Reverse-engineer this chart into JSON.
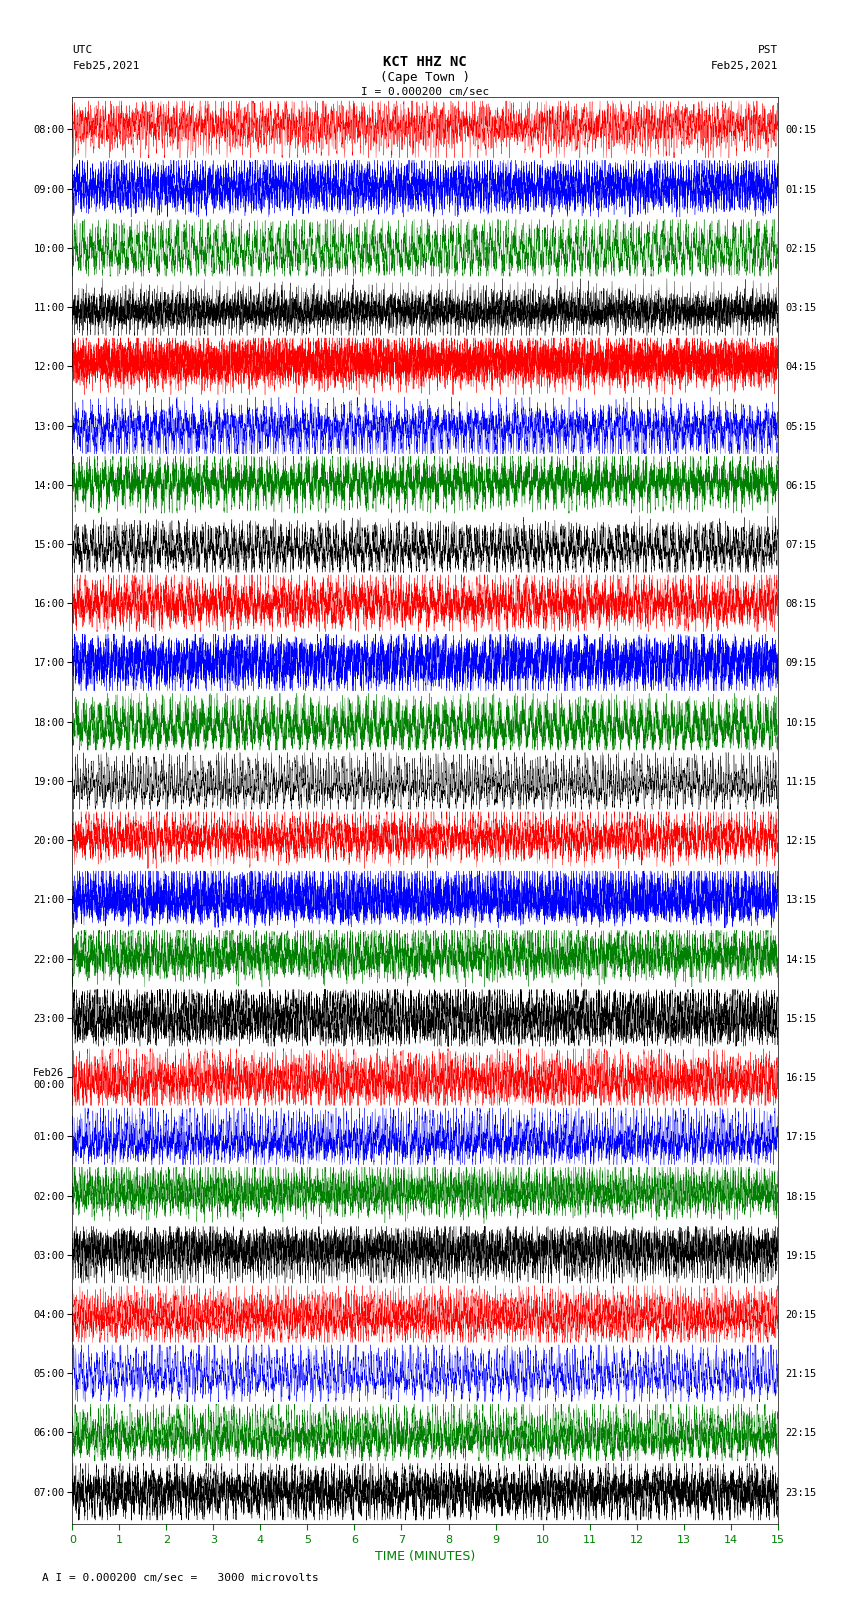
{
  "title_line1": "KCT HHZ NC",
  "title_line2": "(Cape Town )",
  "scale_label": "I = 0.000200 cm/sec",
  "footer_label": "A I = 0.000200 cm/sec =   3000 microvolts",
  "utc_label": "UTC",
  "pst_label": "PST",
  "date_left": "Feb25,2021",
  "date_right": "Feb25,2021",
  "xlabel": "TIME (MINUTES)",
  "left_times": [
    "08:00",
    "09:00",
    "10:00",
    "11:00",
    "12:00",
    "13:00",
    "14:00",
    "15:00",
    "16:00",
    "17:00",
    "18:00",
    "19:00",
    "20:00",
    "21:00",
    "22:00",
    "23:00",
    "Feb26\n00:00",
    "01:00",
    "02:00",
    "03:00",
    "04:00",
    "05:00",
    "06:00",
    "07:00"
  ],
  "right_times": [
    "00:15",
    "01:15",
    "02:15",
    "03:15",
    "04:15",
    "05:15",
    "06:15",
    "07:15",
    "08:15",
    "09:15",
    "10:15",
    "11:15",
    "12:15",
    "13:15",
    "14:15",
    "15:15",
    "16:15",
    "17:15",
    "18:15",
    "19:15",
    "20:15",
    "21:15",
    "22:15",
    "23:15"
  ],
  "n_rows": 24,
  "minutes_per_row": 15,
  "colors": [
    "red",
    "blue",
    "green",
    "black"
  ],
  "bg_color": "white",
  "trace_amplitude": 0.48,
  "samples_per_row": 9000,
  "figsize": [
    8.5,
    16.13
  ],
  "dpi": 100
}
